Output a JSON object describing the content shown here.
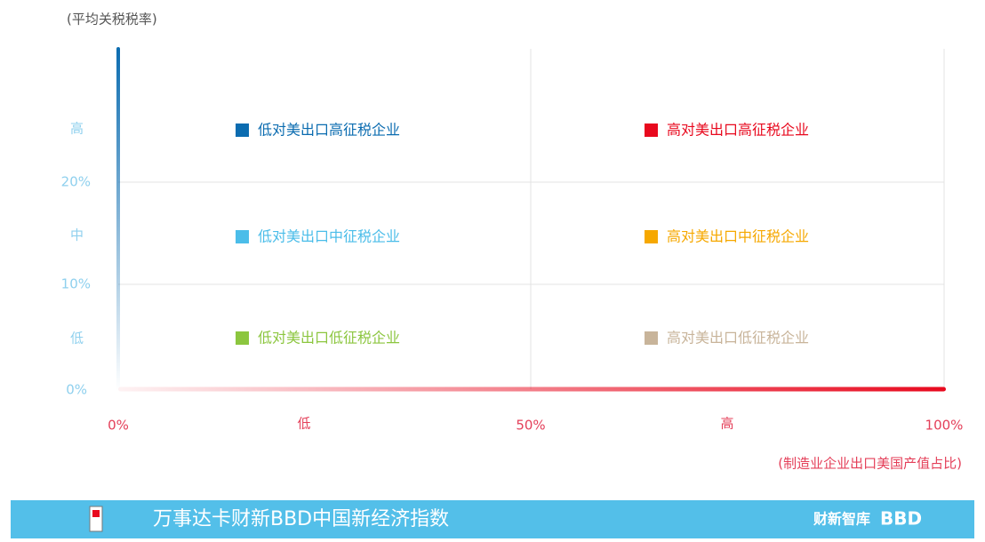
{
  "axes": {
    "y_title": "(平均关税税率)",
    "y_labels": [
      "高",
      "20%",
      "中",
      "10%",
      "低",
      "0%"
    ],
    "x_labels": [
      "0%",
      "低",
      "50%",
      "高",
      "100%"
    ],
    "x_title": "(制造业企业出口美国产值占比)"
  },
  "legend": [
    {
      "label": "低对美出口高征税企业",
      "color": "#0b6cb0"
    },
    {
      "label": "高对美出口高征税企业",
      "color": "#e8091e"
    },
    {
      "label": "低对美出口中征税企业",
      "color": "#4bbde9"
    },
    {
      "label": "高对美出口中征税企业",
      "color": "#f6a800"
    },
    {
      "label": "低对美出口低征税企业",
      "color": "#8cc63f"
    },
    {
      "label": "高对美出口低征税企业",
      "color": "#c8b49a"
    }
  ],
  "footer": {
    "title": "万事达卡财新BBD中国新经济指数",
    "logo1": "财新智库",
    "logo2": "BBD"
  }
}
